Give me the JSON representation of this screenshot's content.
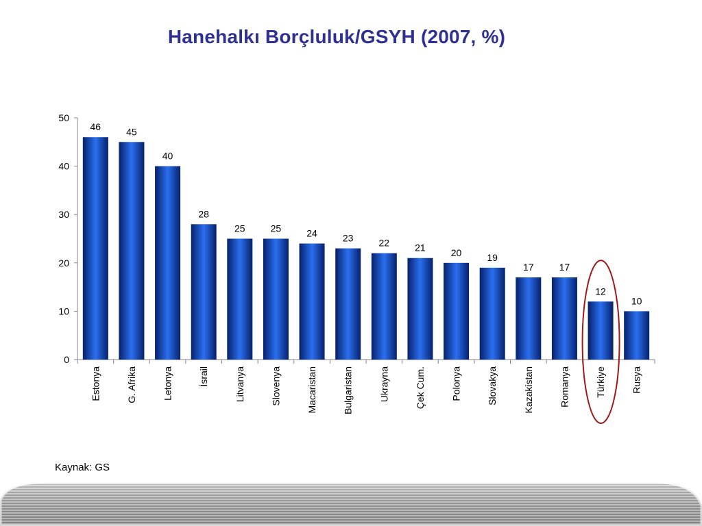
{
  "slide": {
    "title": "Hanehalkı Borçluluk/GSYH (2007, %)",
    "source": "Kaynak: GS"
  },
  "colors": {
    "title": "#2e3192",
    "bar_dark": "#06216b",
    "bar_light": "#2a6ff0",
    "highlight_ring": "#9e1a1a"
  },
  "chart_data": {
    "type": "bar",
    "title": "Hanehalkı Borçluluk/GSYH (2007, %)",
    "xlabel": "",
    "ylabel": "",
    "ylim": [
      0,
      50
    ],
    "yticks": [
      0,
      10,
      20,
      30,
      40,
      50
    ],
    "grid": false,
    "categories": [
      "Estonya",
      "G. Afrika",
      "Letonya",
      "İsrail",
      "Litvanya",
      "Slovenya",
      "Macaristan",
      "Bulgaristan",
      "Ukrayna",
      "Çek Cum.",
      "Polonya",
      "Slovakya",
      "Kazakistan",
      "Romanya",
      "Türkiye",
      "Rusya"
    ],
    "values": [
      46,
      45,
      40,
      28,
      25,
      25,
      24,
      23,
      22,
      21,
      20,
      19,
      17,
      17,
      12,
      10
    ],
    "data_labels": true,
    "highlighted_category": "Türkiye"
  }
}
